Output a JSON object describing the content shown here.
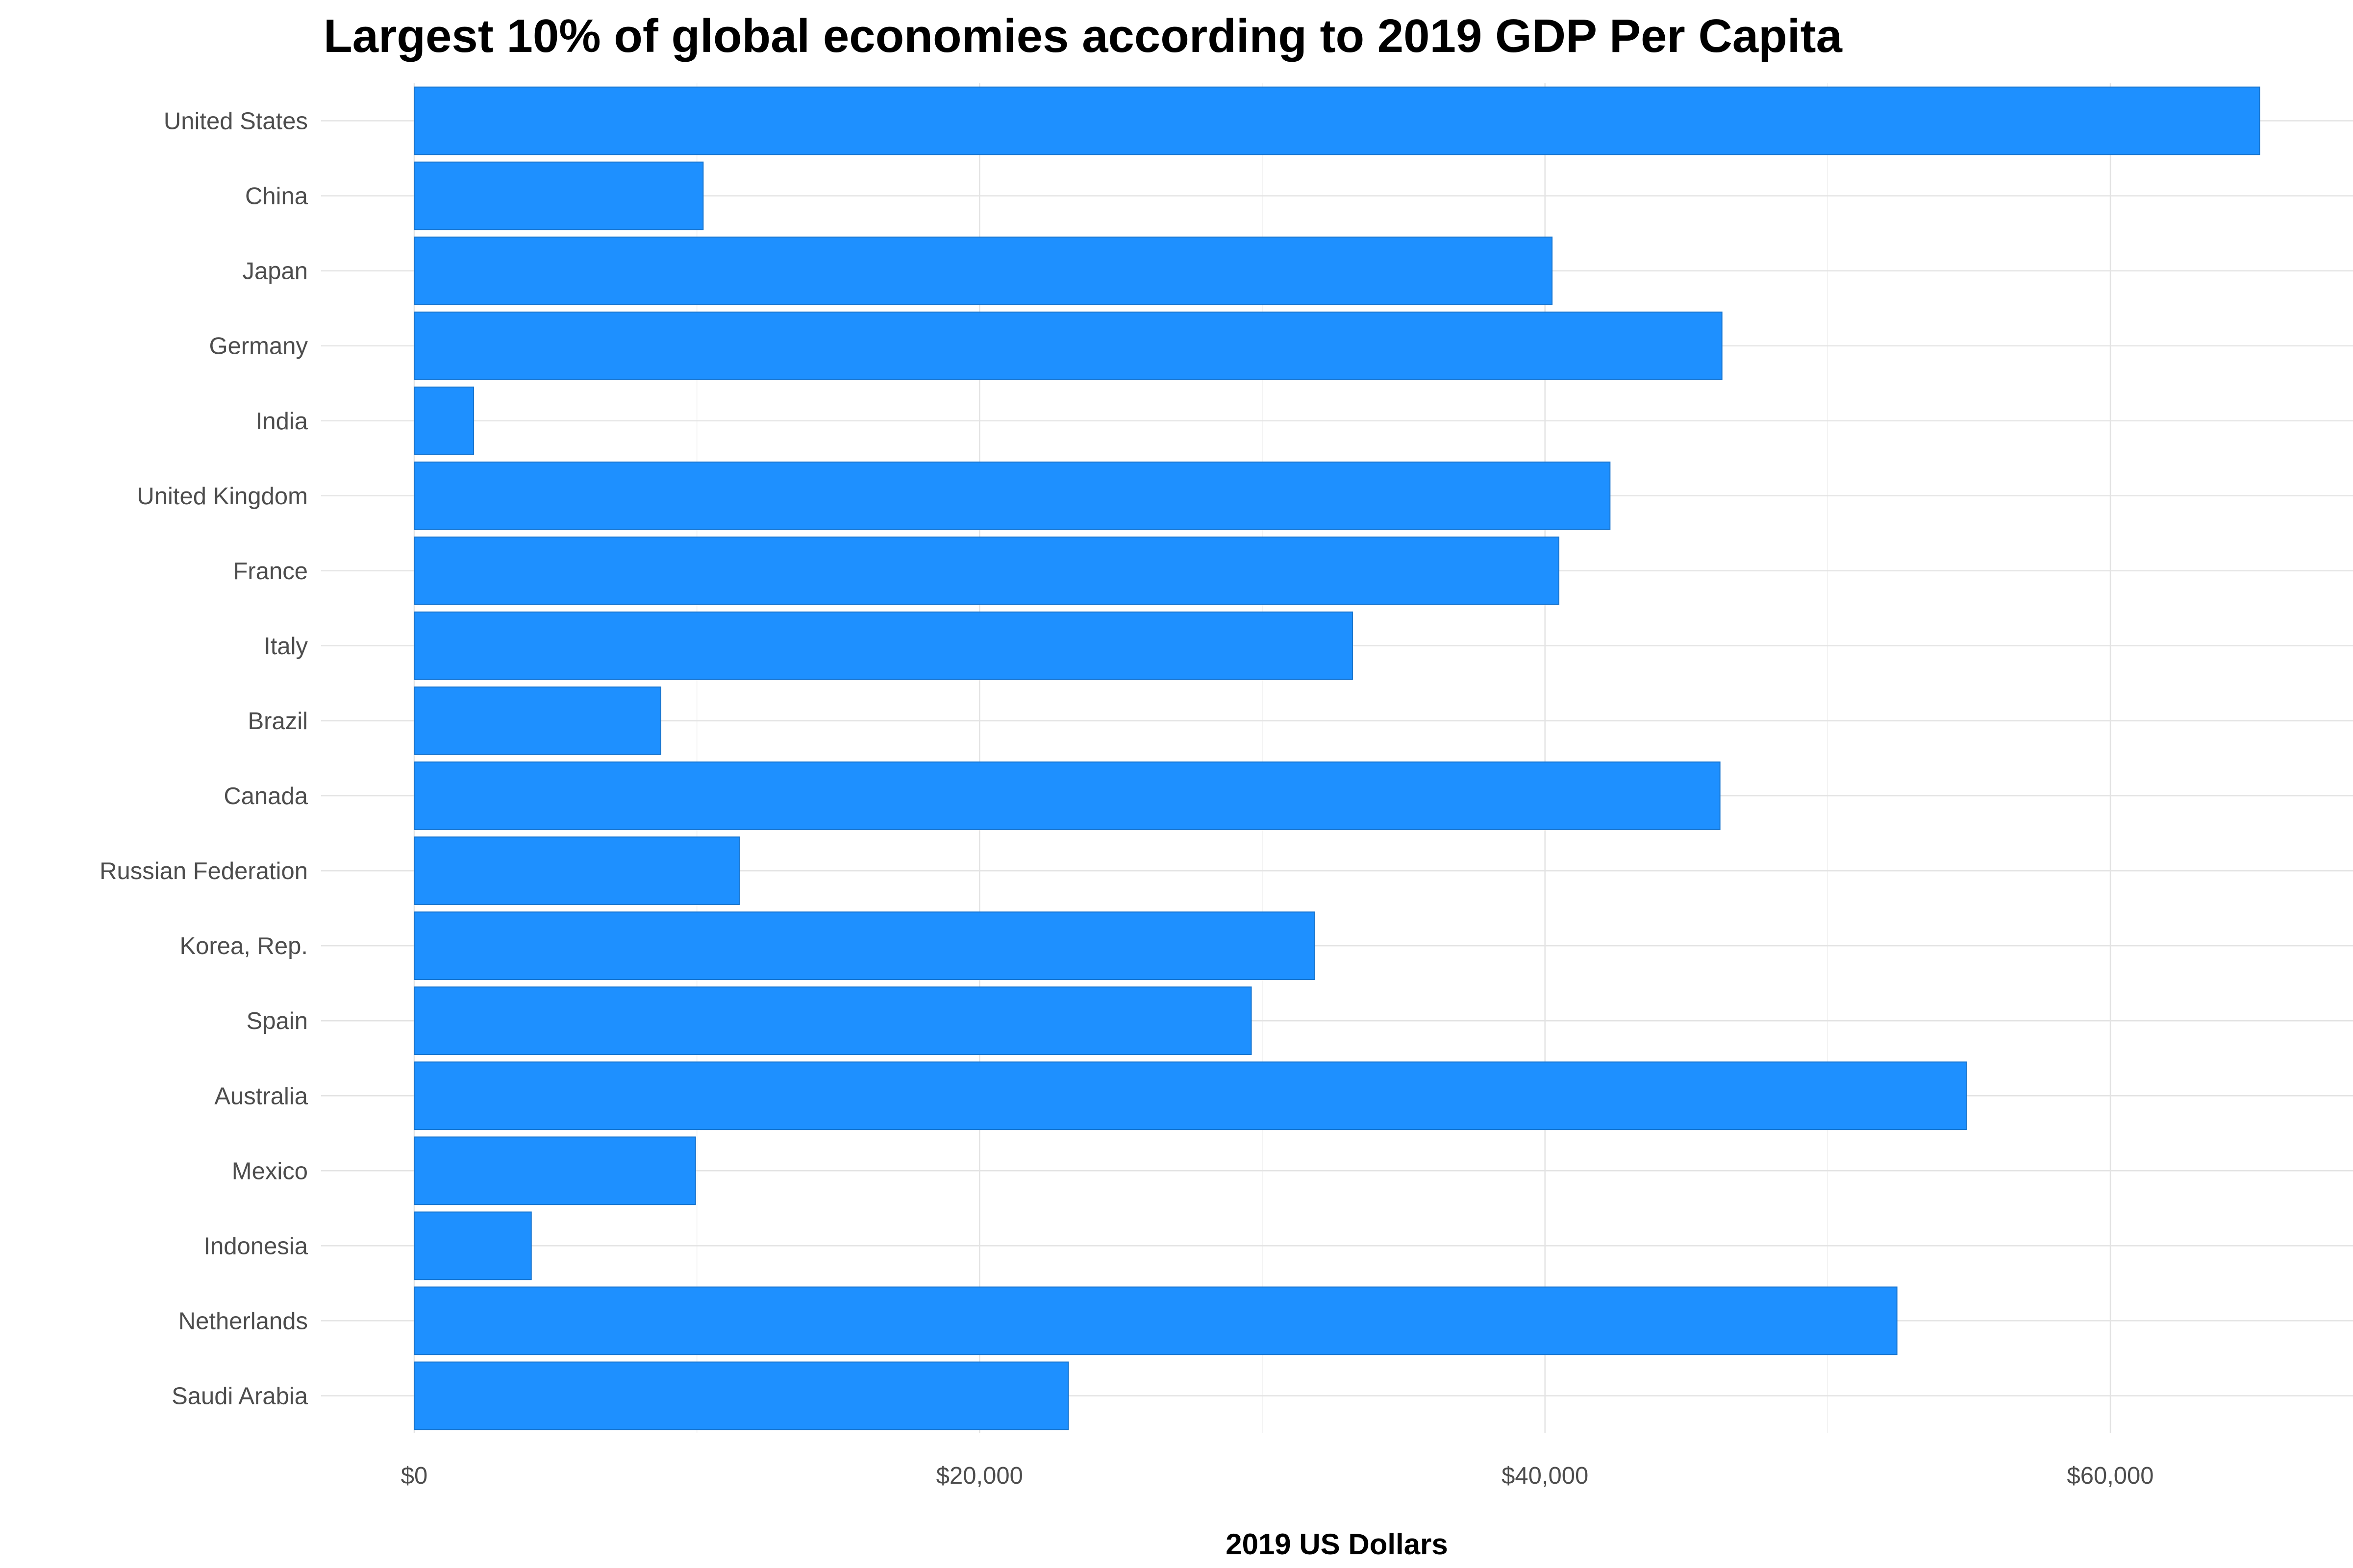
{
  "chart_data": {
    "type": "bar",
    "orientation": "horizontal",
    "title": "Largest 10% of global economies according to 2019 GDP Per Capita",
    "xlabel": "2019 US Dollars",
    "ylabel": "",
    "categories": [
      "United States",
      "China",
      "Japan",
      "Germany",
      "India",
      "United Kingdom",
      "France",
      "Italy",
      "Brazil",
      "Canada",
      "Russian Federation",
      "Korea, Rep.",
      "Spain",
      "Australia",
      "Mexico",
      "Indonesia",
      "Netherlands",
      "Saudi Arabia"
    ],
    "values": [
      65280,
      10220,
      40250,
      46260,
      2100,
      42300,
      40490,
      33190,
      8720,
      46190,
      11500,
      31840,
      29610,
      54910,
      9950,
      4140,
      52450,
      23140
    ],
    "xlim": [
      -3500,
      68500
    ],
    "x_ticks": [
      0,
      20000,
      40000,
      60000
    ],
    "x_tick_labels": [
      "$0",
      "$20,000",
      "$40,000",
      "$60,000"
    ],
    "bar_color": "#1e90ff",
    "bar_border_color": "#1874cd",
    "grid": true,
    "legend": "none"
  }
}
